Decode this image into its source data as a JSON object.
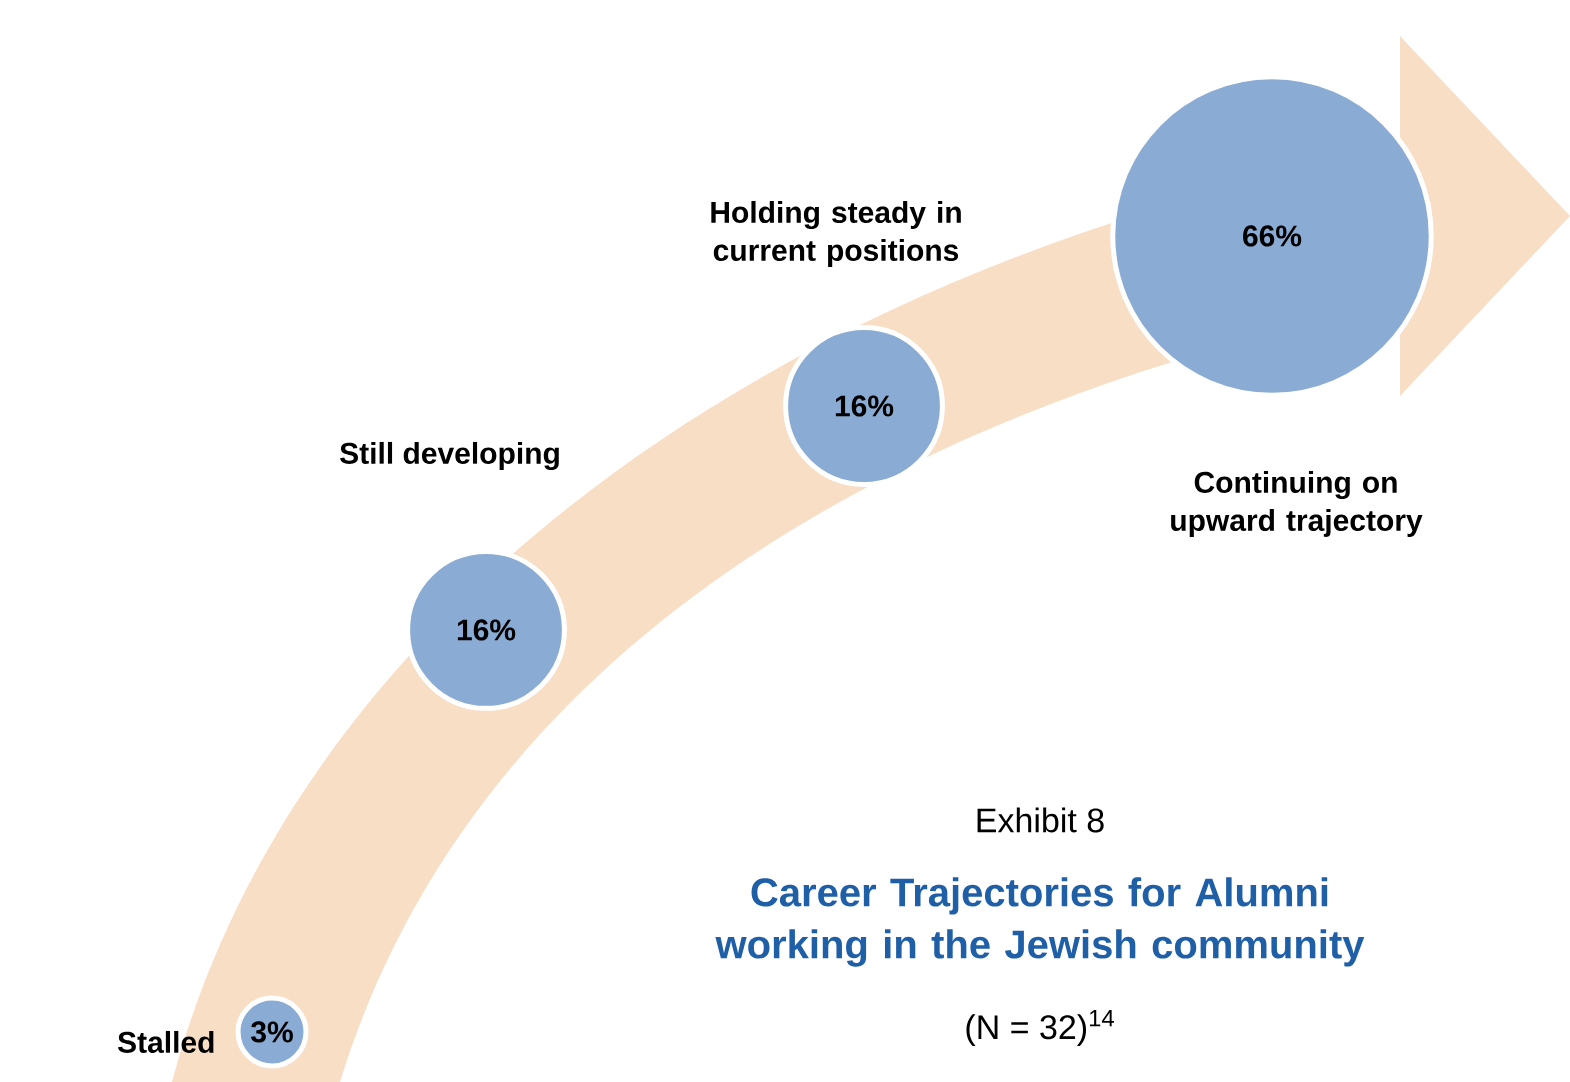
{
  "chart_data": {
    "type": "other",
    "title": "Career Trajectories for Alumni working in the Jewish community",
    "categories": [
      "Stalled",
      "Still developing",
      "Holding steady in current positions",
      "Continuing on upward trajectory"
    ],
    "values": [
      3,
      16,
      16,
      66
    ],
    "value_labels": [
      "3%",
      "16%",
      "16%",
      "66%"
    ],
    "color": "#8aabd3",
    "annotations": [
      "Exhibit 8",
      "(N = 32)$^{14}$"
    ]
  }
}
